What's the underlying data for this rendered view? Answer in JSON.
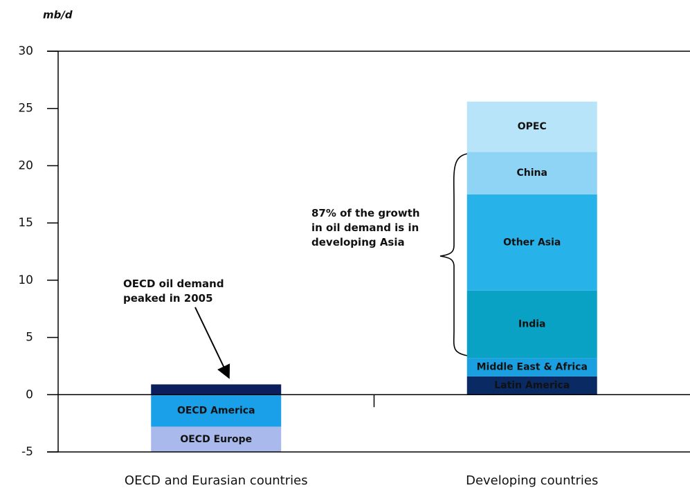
{
  "chart_data": {
    "type": "stacked_bar",
    "y_axis_label": "mb/d",
    "categories": [
      "OECD and Eurasian countries",
      "Developing countries"
    ],
    "series": [
      {
        "name": null,
        "color": "#0b1f5c",
        "values": [
          0.9,
          null
        ]
      },
      {
        "name": "OECD America",
        "color": "#1aa0e8",
        "values": [
          -2.8,
          null
        ]
      },
      {
        "name": "OECD Europe",
        "color": "#a9b9ec",
        "values": [
          -2.2,
          null
        ]
      },
      {
        "name": "Latin America",
        "color": "#0a2a63",
        "values": [
          null,
          1.6
        ]
      },
      {
        "name": "Middle East & Africa",
        "color": "#1a9fe0",
        "values": [
          null,
          1.6
        ]
      },
      {
        "name": "India",
        "color": "#0aa2c4",
        "values": [
          null,
          5.9
        ]
      },
      {
        "name": "Other Asia",
        "color": "#27b3ea",
        "values": [
          null,
          8.4
        ]
      },
      {
        "name": "China",
        "color": "#8fd4f4",
        "values": [
          null,
          3.7
        ]
      },
      {
        "name": "OPEC",
        "color": "#b7e4f9",
        "values": [
          null,
          4.4
        ]
      }
    ],
    "ylim": [
      -5,
      30
    ],
    "yticks": [
      -5,
      0,
      5,
      10,
      15,
      20,
      25,
      30
    ],
    "annotations": [
      {
        "lines": [
          "OECD oil demand",
          "peaked in 2005"
        ]
      },
      {
        "lines": [
          "87% of the growth",
          "in oil demand is in",
          "developing Asia"
        ]
      }
    ]
  }
}
